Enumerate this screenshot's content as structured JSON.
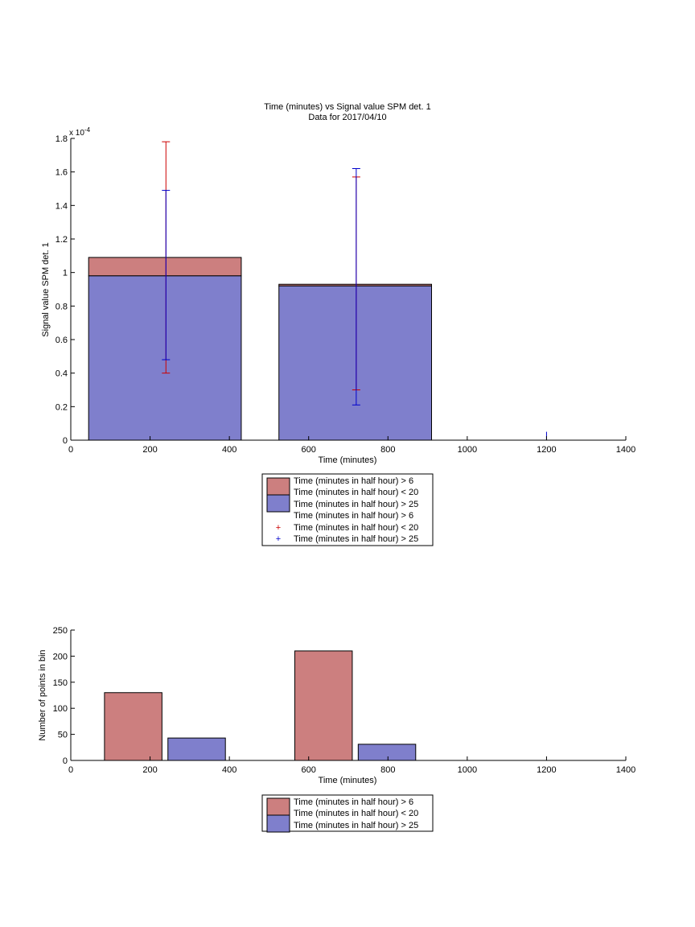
{
  "colors": {
    "red_fill": "#cc7f7f",
    "blue_fill": "#7f7fcc",
    "red_err": "#cc0000",
    "blue_err": "#0000cc",
    "axis": "#000000"
  },
  "chart_data": [
    {
      "type": "bar",
      "stacked": true,
      "title": "Time (minutes) vs Signal value SPM det. 1",
      "subtitle": "Data for 2017/04/10",
      "xlabel": "Time (minutes)",
      "ylabel": "Signal value SPM det. 1",
      "y_exponent_label": "x 10",
      "y_exponent_power": "-4",
      "xlim": [
        0,
        1400
      ],
      "ylim": [
        0,
        0.00018
      ],
      "xticks": [
        0,
        200,
        400,
        600,
        800,
        1000,
        1200,
        1400
      ],
      "xtick_labels": [
        "0",
        "200",
        "400",
        "600",
        "800",
        "1000",
        "1200",
        "1400"
      ],
      "yticks": [
        0,
        2e-05,
        4e-05,
        6e-05,
        8e-05,
        0.0001,
        0.00012,
        0.00014,
        0.00016,
        0.00018
      ],
      "ytick_labels": [
        "0",
        "0.2",
        "0.4",
        "0.6",
        "0.8",
        "1",
        "1.2",
        "1.4",
        "1.6",
        "1.8"
      ],
      "grid": false,
      "bars": [
        {
          "x_start": 45,
          "x_end": 430,
          "blue": 9.8e-05,
          "total": 0.000109
        },
        {
          "x_start": 525,
          "x_end": 910,
          "blue": 9.2e-05,
          "total": 9.3e-05
        }
      ],
      "errorbars": [
        {
          "series": "red",
          "x": 240,
          "low": 4e-05,
          "high": 0.000178
        },
        {
          "series": "blue",
          "x": 240,
          "low": 4.8e-05,
          "high": 0.000149
        },
        {
          "series": "red",
          "x": 720,
          "low": 3e-05,
          "high": 0.000157
        },
        {
          "series": "blue",
          "x": 720,
          "low": 2.1e-05,
          "high": 0.000162
        },
        {
          "series": "blue",
          "x": 1200,
          "low": 0,
          "high": 5e-06
        }
      ],
      "legend": {
        "position": "below",
        "entries": [
          {
            "kind": "patch",
            "color": "red",
            "text": "Time (minutes in half hour) > 6"
          },
          {
            "kind": "none",
            "text": "Time (minutes in half hour) < 20"
          },
          {
            "kind": "patch",
            "color": "blue",
            "text": "Time (minutes in half hour) > 25"
          },
          {
            "kind": "none",
            "text": "Time (minutes in half hour) > 6"
          },
          {
            "kind": "marker",
            "color": "red",
            "text": "Time (minutes in half hour) < 20"
          },
          {
            "kind": "marker",
            "color": "blue",
            "text": "Time (minutes in half hour) > 25"
          }
        ]
      }
    },
    {
      "type": "bar",
      "xlabel": "Time (minutes)",
      "ylabel": "Number of points in bin",
      "xlim": [
        0,
        1400
      ],
      "ylim": [
        0,
        250
      ],
      "xticks": [
        0,
        200,
        400,
        600,
        800,
        1000,
        1200,
        1400
      ],
      "xtick_labels": [
        "0",
        "200",
        "400",
        "600",
        "800",
        "1000",
        "1200",
        "1400"
      ],
      "yticks": [
        0,
        50,
        100,
        150,
        200,
        250
      ],
      "ytick_labels": [
        "0",
        "50",
        "100",
        "150",
        "200",
        "250"
      ],
      "grid": false,
      "bars": [
        {
          "series": "red",
          "x_start": 85,
          "x_end": 230,
          "value": 130
        },
        {
          "series": "blue",
          "x_start": 245,
          "x_end": 390,
          "value": 43
        },
        {
          "series": "red",
          "x_start": 565,
          "x_end": 710,
          "value": 210
        },
        {
          "series": "blue",
          "x_start": 725,
          "x_end": 870,
          "value": 31
        }
      ],
      "legend": {
        "position": "below",
        "entries": [
          {
            "kind": "patch",
            "color": "red",
            "text": "Time (minutes in half hour) > 6"
          },
          {
            "kind": "none",
            "text": "Time (minutes in half hour) < 20"
          },
          {
            "kind": "patch",
            "color": "blue",
            "text": "Time (minutes in half hour) > 25"
          }
        ]
      }
    }
  ]
}
